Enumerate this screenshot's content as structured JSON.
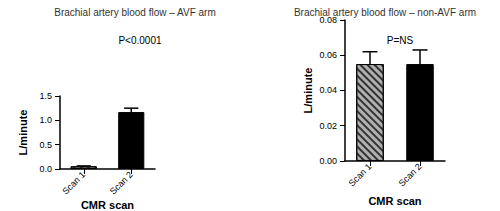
{
  "chart_data": [
    {
      "type": "bar",
      "title": "Brachial artery blood flow – AVF arm",
      "annotation": "P<0.0001",
      "x_label": "CMR scan",
      "y_label": "L/minute",
      "categories": [
        "Scan 1",
        "Scan 2"
      ],
      "values": [
        0.055,
        1.17
      ],
      "errors": [
        0.008,
        0.08
      ],
      "colors": [
        "#b0b0b0",
        "#000000"
      ],
      "ylim": [
        0,
        1.5
      ],
      "yticks": [
        {
          "value": 0,
          "label": "0.0"
        },
        0.5,
        {
          "value": 1,
          "label": "1.0"
        },
        1.5
      ],
      "grid": false
    },
    {
      "type": "bar",
      "title": "Brachial artery blood flow – non-AVF arm",
      "annotation": "P=NS",
      "x_label": "CMR scan",
      "y_label": "L/minute",
      "categories": [
        "Scan 1",
        "Scan 2"
      ],
      "values": [
        0.055,
        0.055
      ],
      "errors": [
        0.007,
        0.008
      ],
      "colors": [
        "#b0b0b0",
        "#000000"
      ],
      "ylim": [
        0,
        0.08
      ],
      "yticks": [
        {
          "value": 0,
          "label": "0.00"
        },
        {
          "value": 0.02,
          "label": "0.02"
        },
        {
          "value": 0.04,
          "label": "0.04"
        },
        {
          "value": 0.06,
          "label": "0.06"
        },
        {
          "value": 0.08,
          "label": "0.08"
        }
      ],
      "grid": false
    }
  ]
}
